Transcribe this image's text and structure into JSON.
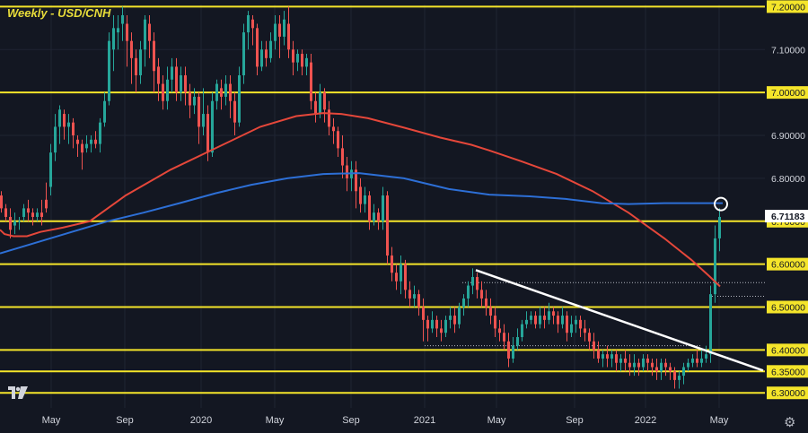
{
  "chart_data": {
    "type": "candlestick",
    "title": "Weekly - USD/CNH",
    "ylim": [
      6.265,
      7.205
    ],
    "y_ticks": [
      "7.20000",
      "7.10000",
      "7.00000",
      "6.90000",
      "6.80000",
      "6.70000",
      "6.60000",
      "6.50000",
      "6.40000",
      "6.35000",
      "6.30000"
    ],
    "x_ticks": [
      "May",
      "Sep",
      "2020",
      "May",
      "Sep",
      "2021",
      "May",
      "Sep",
      "2022",
      "May"
    ],
    "current_price_label": "6.71183",
    "horizontal_levels": [
      7.2,
      7.0,
      6.7,
      6.6,
      6.5,
      6.4,
      6.35,
      6.3
    ],
    "colors": {
      "background": "#131722",
      "up": "#26a69a",
      "down": "#ef5350",
      "levels": "#f5e52a",
      "ma_fast": "#e5473a",
      "ma_slow": "#2d6fd6",
      "trendline": "#ffffff",
      "axis_text": "#d1d4dc"
    },
    "series": [
      {
        "kind": "moving-average-red",
        "points": [
          [
            0,
            6.68
          ],
          [
            5,
            6.67
          ],
          [
            15,
            6.665
          ],
          [
            30,
            6.665
          ],
          [
            45,
            6.675
          ],
          [
            70,
            6.685
          ],
          [
            100,
            6.7
          ],
          [
            140,
            6.76
          ],
          [
            190,
            6.82
          ],
          [
            240,
            6.87
          ],
          [
            290,
            6.92
          ],
          [
            330,
            6.945
          ],
          [
            360,
            6.952
          ],
          [
            380,
            6.95
          ],
          [
            410,
            6.94
          ],
          [
            450,
            6.918
          ],
          [
            490,
            6.895
          ],
          [
            525,
            6.878
          ],
          [
            545,
            6.865
          ],
          [
            580,
            6.84
          ],
          [
            620,
            6.81
          ],
          [
            660,
            6.77
          ],
          [
            700,
            6.72
          ],
          [
            740,
            6.66
          ],
          [
            770,
            6.61
          ],
          [
            790,
            6.572
          ],
          [
            802,
            6.548
          ]
        ]
      },
      {
        "kind": "moving-average-blue",
        "points": [
          [
            0,
            6.625
          ],
          [
            40,
            6.65
          ],
          [
            80,
            6.675
          ],
          [
            120,
            6.7
          ],
          [
            160,
            6.72
          ],
          [
            200,
            6.742
          ],
          [
            240,
            6.765
          ],
          [
            280,
            6.785
          ],
          [
            320,
            6.8
          ],
          [
            360,
            6.81
          ],
          [
            400,
            6.812
          ],
          [
            450,
            6.8
          ],
          [
            500,
            6.775
          ],
          [
            545,
            6.762
          ],
          [
            590,
            6.758
          ],
          [
            630,
            6.752
          ],
          [
            670,
            6.742
          ],
          [
            700,
            6.74
          ],
          [
            740,
            6.742
          ],
          [
            780,
            6.742
          ],
          [
            805,
            6.742
          ]
        ]
      }
    ],
    "trendline": {
      "from": [
        530,
        6.586
      ],
      "to": [
        850,
        6.352
      ]
    },
    "dotted_levels": [
      {
        "y": 6.557,
        "from": 515,
        "to": 852
      },
      {
        "y": 6.525,
        "from": 790,
        "to": 852
      },
      {
        "y": 6.41,
        "from": 473,
        "to": 780
      }
    ],
    "annotation_circle": {
      "x": 803,
      "y": 6.74
    },
    "candles": [
      [
        0,
        6.76,
        6.73,
        6.77,
        6.72
      ],
      [
        5,
        6.73,
        6.71,
        6.74,
        6.7
      ],
      [
        10,
        6.71,
        6.68,
        6.73,
        6.66
      ],
      [
        15,
        6.69,
        6.7,
        6.72,
        6.67
      ],
      [
        20,
        6.7,
        6.7,
        6.71,
        6.68
      ],
      [
        25,
        6.71,
        6.73,
        6.74,
        6.7
      ],
      [
        30,
        6.73,
        6.72,
        6.75,
        6.7
      ],
      [
        35,
        6.72,
        6.71,
        6.73,
        6.69
      ],
      [
        40,
        6.71,
        6.72,
        6.73,
        6.7
      ],
      [
        45,
        6.72,
        6.71,
        6.75,
        6.69
      ],
      [
        50,
        6.75,
        6.73,
        6.79,
        6.72
      ],
      [
        55,
        6.78,
        6.86,
        6.88,
        6.76
      ],
      [
        60,
        6.86,
        6.92,
        6.95,
        6.84
      ],
      [
        65,
        6.92,
        6.96,
        6.97,
        6.88
      ],
      [
        70,
        6.95,
        6.92,
        6.96,
        6.89
      ],
      [
        75,
        6.92,
        6.93,
        6.95,
        6.88
      ],
      [
        80,
        6.93,
        6.9,
        6.94,
        6.87
      ],
      [
        85,
        6.89,
        6.88,
        6.9,
        6.85
      ],
      [
        90,
        6.88,
        6.86,
        6.89,
        6.82
      ],
      [
        95,
        6.87,
        6.88,
        6.9,
        6.86
      ],
      [
        100,
        6.88,
        6.89,
        6.9,
        6.86
      ],
      [
        105,
        6.89,
        6.88,
        6.91,
        6.87
      ],
      [
        110,
        6.88,
        6.93,
        6.94,
        6.86
      ],
      [
        115,
        6.93,
        6.98,
        7.0,
        6.92
      ],
      [
        120,
        6.98,
        7.12,
        7.14,
        6.97
      ],
      [
        125,
        7.1,
        7.15,
        7.18,
        7.05
      ],
      [
        130,
        7.14,
        7.15,
        7.18,
        7.1
      ],
      [
        135,
        7.16,
        7.18,
        7.2,
        7.12
      ],
      [
        140,
        7.16,
        7.12,
        7.18,
        7.06
      ],
      [
        145,
        7.12,
        7.08,
        7.14,
        7.02
      ],
      [
        150,
        7.08,
        7.04,
        7.1,
        7.0
      ],
      [
        155,
        7.04,
        7.1,
        7.12,
        7.02
      ],
      [
        160,
        7.1,
        7.17,
        7.18,
        7.06
      ],
      [
        165,
        7.16,
        7.12,
        7.18,
        7.08
      ],
      [
        170,
        7.12,
        7.05,
        7.14,
        7.0
      ],
      [
        175,
        7.06,
        7.02,
        7.08,
        6.98
      ],
      [
        180,
        7.02,
        6.98,
        7.04,
        6.96
      ],
      [
        185,
        6.98,
        7.03,
        7.06,
        6.96
      ],
      [
        190,
        7.03,
        7.06,
        7.08,
        7.0
      ],
      [
        195,
        7.06,
        7.0,
        7.08,
        6.98
      ],
      [
        200,
        7.0,
        7.04,
        7.06,
        6.98
      ],
      [
        205,
        7.04,
        7.0,
        7.06,
        6.97
      ],
      [
        210,
        7.0,
        6.97,
        7.02,
        6.94
      ],
      [
        215,
        6.97,
        6.99,
        7.01,
        6.95
      ],
      [
        220,
        6.99,
        6.92,
        7.0,
        6.88
      ],
      [
        225,
        6.92,
        6.95,
        7.01,
        6.9
      ],
      [
        230,
        6.95,
        6.86,
        6.97,
        6.84
      ],
      [
        235,
        6.86,
        6.98,
        7.0,
        6.85
      ],
      [
        240,
        6.98,
        7.02,
        7.03,
        6.96
      ],
      [
        245,
        7.01,
        6.99,
        7.03,
        6.96
      ],
      [
        250,
        6.99,
        7.02,
        7.04,
        6.97
      ],
      [
        255,
        7.02,
        6.98,
        7.04,
        6.94
      ],
      [
        260,
        6.98,
        6.93,
        7.0,
        6.9
      ],
      [
        265,
        6.93,
        7.04,
        7.06,
        6.92
      ],
      [
        270,
        7.04,
        7.14,
        7.16,
        7.02
      ],
      [
        275,
        7.14,
        7.18,
        7.19,
        7.1
      ],
      [
        280,
        7.17,
        7.15,
        7.18,
        7.11
      ],
      [
        285,
        7.15,
        7.06,
        7.16,
        7.04
      ],
      [
        290,
        7.06,
        7.1,
        7.12,
        7.05
      ],
      [
        295,
        7.1,
        7.08,
        7.12,
        7.06
      ],
      [
        300,
        7.08,
        7.12,
        7.14,
        7.07
      ],
      [
        305,
        7.12,
        7.16,
        7.18,
        7.1
      ],
      [
        310,
        7.16,
        7.13,
        7.18,
        7.08
      ],
      [
        315,
        7.13,
        7.17,
        7.19,
        7.11
      ],
      [
        320,
        7.16,
        7.1,
        7.2,
        7.08
      ],
      [
        325,
        7.1,
        7.07,
        7.12,
        7.04
      ],
      [
        330,
        7.07,
        7.09,
        7.1,
        7.05
      ],
      [
        335,
        7.09,
        7.06,
        7.1,
        7.04
      ],
      [
        340,
        7.06,
        7.08,
        7.09,
        7.04
      ],
      [
        345,
        7.07,
        6.98,
        7.09,
        6.96
      ],
      [
        350,
        6.98,
        6.95,
        7.0,
        6.93
      ],
      [
        355,
        6.95,
        7.0,
        7.02,
        6.94
      ],
      [
        360,
        7.0,
        6.96,
        7.01,
        6.93
      ],
      [
        365,
        6.96,
        6.92,
        6.98,
        6.9
      ],
      [
        370,
        6.92,
        6.91,
        6.94,
        6.88
      ],
      [
        375,
        6.91,
        6.87,
        6.92,
        6.85
      ],
      [
        380,
        6.87,
        6.83,
        6.9,
        6.8
      ],
      [
        385,
        6.83,
        6.8,
        6.85,
        6.77
      ],
      [
        390,
        6.8,
        6.82,
        6.84,
        6.77
      ],
      [
        395,
        6.82,
        6.77,
        6.84,
        6.73
      ],
      [
        400,
        6.78,
        6.74,
        6.8,
        6.72
      ],
      [
        405,
        6.74,
        6.76,
        6.78,
        6.72
      ],
      [
        410,
        6.76,
        6.7,
        6.77,
        6.68
      ],
      [
        415,
        6.7,
        6.72,
        6.74,
        6.69
      ],
      [
        420,
        6.72,
        6.7,
        6.73,
        6.68
      ],
      [
        425,
        6.7,
        6.76,
        6.78,
        6.68
      ],
      [
        430,
        6.76,
        6.62,
        6.77,
        6.6
      ],
      [
        435,
        6.62,
        6.58,
        6.64,
        6.56
      ],
      [
        440,
        6.58,
        6.56,
        6.6,
        6.54
      ],
      [
        445,
        6.56,
        6.6,
        6.62,
        6.53
      ],
      [
        450,
        6.6,
        6.54,
        6.61,
        6.52
      ],
      [
        455,
        6.54,
        6.52,
        6.56,
        6.5
      ],
      [
        460,
        6.52,
        6.53,
        6.55,
        6.5
      ],
      [
        465,
        6.53,
        6.5,
        6.54,
        6.48
      ],
      [
        470,
        6.5,
        6.47,
        6.52,
        6.42
      ],
      [
        475,
        6.47,
        6.45,
        6.48,
        6.42
      ],
      [
        480,
        6.45,
        6.47,
        6.49,
        6.44
      ],
      [
        485,
        6.47,
        6.45,
        6.48,
        6.43
      ],
      [
        490,
        6.45,
        6.44,
        6.47,
        6.42
      ],
      [
        495,
        6.44,
        6.47,
        6.48,
        6.43
      ],
      [
        500,
        6.47,
        6.48,
        6.5,
        6.45
      ],
      [
        505,
        6.48,
        6.46,
        6.5,
        6.44
      ],
      [
        510,
        6.46,
        6.5,
        6.51,
        6.45
      ],
      [
        515,
        6.5,
        6.52,
        6.53,
        6.48
      ],
      [
        520,
        6.52,
        6.55,
        6.56,
        6.5
      ],
      [
        525,
        6.55,
        6.57,
        6.59,
        6.53
      ],
      [
        530,
        6.57,
        6.54,
        6.58,
        6.52
      ],
      [
        535,
        6.54,
        6.52,
        6.56,
        6.5
      ],
      [
        540,
        6.52,
        6.5,
        6.54,
        6.48
      ],
      [
        545,
        6.5,
        6.48,
        6.52,
        6.46
      ],
      [
        550,
        6.48,
        6.45,
        6.5,
        6.43
      ],
      [
        555,
        6.45,
        6.44,
        6.47,
        6.42
      ],
      [
        560,
        6.44,
        6.42,
        6.46,
        6.4
      ],
      [
        565,
        6.42,
        6.38,
        6.44,
        6.36
      ],
      [
        570,
        6.38,
        6.41,
        6.43,
        6.37
      ],
      [
        575,
        6.41,
        6.43,
        6.45,
        6.4
      ],
      [
        580,
        6.43,
        6.46,
        6.47,
        6.42
      ],
      [
        585,
        6.46,
        6.47,
        6.49,
        6.45
      ],
      [
        590,
        6.47,
        6.48,
        6.49,
        6.46
      ],
      [
        595,
        6.48,
        6.46,
        6.49,
        6.45
      ],
      [
        600,
        6.46,
        6.48,
        6.5,
        6.45
      ],
      [
        605,
        6.48,
        6.47,
        6.5,
        6.45
      ],
      [
        610,
        6.47,
        6.49,
        6.51,
        6.46
      ],
      [
        615,
        6.49,
        6.48,
        6.5,
        6.46
      ],
      [
        620,
        6.48,
        6.46,
        6.49,
        6.44
      ],
      [
        625,
        6.46,
        6.48,
        6.5,
        6.45
      ],
      [
        630,
        6.48,
        6.44,
        6.49,
        6.42
      ],
      [
        635,
        6.44,
        6.46,
        6.48,
        6.43
      ],
      [
        640,
        6.46,
        6.47,
        6.48,
        6.44
      ],
      [
        645,
        6.47,
        6.45,
        6.48,
        6.43
      ],
      [
        650,
        6.45,
        6.44,
        6.47,
        6.42
      ],
      [
        655,
        6.44,
        6.42,
        6.45,
        6.4
      ],
      [
        660,
        6.42,
        6.4,
        6.44,
        6.38
      ],
      [
        665,
        6.4,
        6.38,
        6.42,
        6.37
      ],
      [
        670,
        6.38,
        6.39,
        6.4,
        6.36
      ],
      [
        675,
        6.39,
        6.38,
        6.41,
        6.36
      ],
      [
        680,
        6.38,
        6.39,
        6.4,
        6.36
      ],
      [
        685,
        6.39,
        6.37,
        6.4,
        6.35
      ],
      [
        690,
        6.37,
        6.38,
        6.39,
        6.35
      ],
      [
        695,
        6.38,
        6.37,
        6.4,
        6.35
      ],
      [
        700,
        6.37,
        6.36,
        6.39,
        6.34
      ],
      [
        705,
        6.36,
        6.37,
        6.39,
        6.34
      ],
      [
        710,
        6.37,
        6.36,
        6.38,
        6.34
      ],
      [
        715,
        6.36,
        6.38,
        6.39,
        6.35
      ],
      [
        720,
        6.38,
        6.37,
        6.39,
        6.35
      ],
      [
        725,
        6.37,
        6.36,
        6.38,
        6.34
      ],
      [
        730,
        6.36,
        6.35,
        6.38,
        6.33
      ],
      [
        735,
        6.35,
        6.37,
        6.38,
        6.33
      ],
      [
        740,
        6.37,
        6.36,
        6.38,
        6.34
      ],
      [
        745,
        6.36,
        6.35,
        6.37,
        6.33
      ],
      [
        750,
        6.35,
        6.33,
        6.36,
        6.31
      ],
      [
        755,
        6.33,
        6.34,
        6.35,
        6.31
      ],
      [
        760,
        6.34,
        6.36,
        6.37,
        6.32
      ],
      [
        765,
        6.36,
        6.37,
        6.38,
        6.35
      ],
      [
        770,
        6.37,
        6.38,
        6.39,
        6.36
      ],
      [
        775,
        6.38,
        6.37,
        6.4,
        6.36
      ],
      [
        780,
        6.37,
        6.38,
        6.4,
        6.36
      ],
      [
        785,
        6.38,
        6.39,
        6.41,
        6.37
      ],
      [
        790,
        6.39,
        6.53,
        6.55,
        6.37
      ],
      [
        795,
        6.53,
        6.66,
        6.69,
        6.51
      ],
      [
        800,
        6.66,
        6.71,
        6.73,
        6.63
      ]
    ]
  }
}
